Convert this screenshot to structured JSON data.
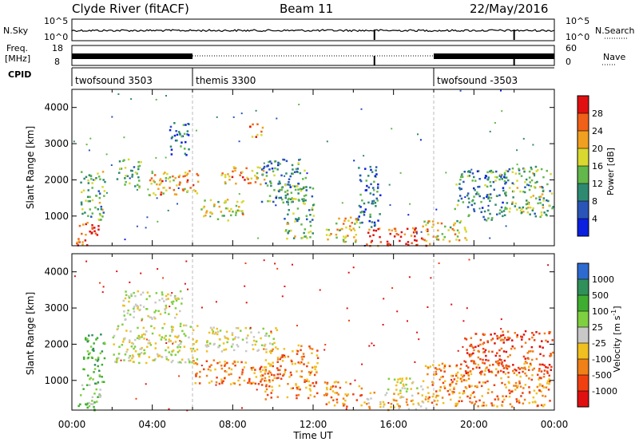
{
  "header": {
    "station": "Clyde River (fitACF)",
    "beam": "Beam 11",
    "date": "22/May/2016"
  },
  "panels": {
    "nsky_label": "N.Sky",
    "nsky_ticks": [
      "10^5",
      "10^0"
    ],
    "nsearch_label": "N.Search",
    "nsearch_ticks": [
      "10^5",
      "10^0"
    ],
    "freq_label_1": "Freq.",
    "freq_label_2": "[MHz]",
    "freq_ticks": [
      "18",
      "8"
    ],
    "nave_label": "Nave",
    "nave_ticks": [
      "60",
      "0"
    ],
    "cpid_label": "CPID",
    "cpid_segments": [
      {
        "name": "twofsound 3503",
        "start": 0
      },
      {
        "name": "themis 3300",
        "start": 6
      },
      {
        "name": "twofsound -3503",
        "start": 18
      }
    ]
  },
  "chart_data": [
    {
      "type": "heatmap",
      "name": "power",
      "xlabel": "Time UT",
      "ylabel": "Slant Range [km]",
      "x_ticks": [
        "00:00",
        "04:00",
        "08:00",
        "12:00",
        "16:00",
        "20:00",
        "00:00"
      ],
      "x_range_hours": [
        0,
        24
      ],
      "y_ticks": [
        1000,
        2000,
        3000,
        4000
      ],
      "y_range_km": [
        180,
        4500
      ],
      "colorbar": {
        "label": "Power [dB]",
        "ticks": [
          "4",
          "8",
          "12",
          "16",
          "20",
          "24",
          "28"
        ],
        "range": [
          0,
          32
        ],
        "colors": [
          "#0a1fe0",
          "#2a55b8",
          "#2d8a70",
          "#62b84a",
          "#d8d830",
          "#f0a020",
          "#f06018",
          "#e01010"
        ]
      },
      "blobs": [
        {
          "t0": 0.2,
          "t1": 1.3,
          "r0": 200,
          "r1": 900,
          "v": 28
        },
        {
          "t0": 0.4,
          "t1": 1.6,
          "r0": 900,
          "r1": 2300,
          "v": 14
        },
        {
          "t0": 2.2,
          "t1": 3.4,
          "r0": 1800,
          "r1": 2600,
          "v": 12
        },
        {
          "t0": 3.8,
          "t1": 6.4,
          "r0": 1600,
          "r1": 2300,
          "v": 22
        },
        {
          "t0": 4.8,
          "t1": 5.8,
          "r0": 2700,
          "r1": 3600,
          "v": 8
        },
        {
          "t0": 6.4,
          "t1": 8.6,
          "r0": 900,
          "r1": 1500,
          "v": 18
        },
        {
          "t0": 7.4,
          "t1": 9.6,
          "r0": 1900,
          "r1": 2400,
          "v": 22
        },
        {
          "t0": 8.8,
          "t1": 9.5,
          "r0": 3200,
          "r1": 3600,
          "v": 24
        },
        {
          "t0": 9.4,
          "t1": 11.6,
          "r0": 1400,
          "r1": 2600,
          "v": 10
        },
        {
          "t0": 10.5,
          "t1": 12.0,
          "r0": 400,
          "r1": 1900,
          "v": 14
        },
        {
          "t0": 12.6,
          "t1": 14.3,
          "r0": 300,
          "r1": 1000,
          "v": 20
        },
        {
          "t0": 14.2,
          "t1": 15.3,
          "r0": 700,
          "r1": 2400,
          "v": 8
        },
        {
          "t0": 14.6,
          "t1": 17.8,
          "r0": 200,
          "r1": 700,
          "v": 28
        },
        {
          "t0": 17.4,
          "t1": 19.6,
          "r0": 300,
          "r1": 900,
          "v": 18
        },
        {
          "t0": 19.0,
          "t1": 21.6,
          "r0": 900,
          "r1": 2300,
          "v": 10
        },
        {
          "t0": 21.5,
          "t1": 23.9,
          "r0": 1000,
          "r1": 2400,
          "v": 14
        }
      ]
    },
    {
      "type": "heatmap",
      "name": "velocity",
      "xlabel": "Time UT",
      "ylabel": "Slant Range [km]",
      "x_ticks": [
        "00:00",
        "04:00",
        "08:00",
        "12:00",
        "16:00",
        "20:00",
        "00:00"
      ],
      "x_range_hours": [
        0,
        24
      ],
      "y_ticks": [
        1000,
        2000,
        3000,
        4000
      ],
      "y_range_km": [
        180,
        4500
      ],
      "colorbar": {
        "label": "Velocity [m s^-1]",
        "ticks": [
          "1000",
          "500",
          "100",
          "25",
          "-25",
          "-100",
          "-500",
          "-1000"
        ],
        "colors": [
          "#2d6ad0",
          "#30905a",
          "#3fae30",
          "#7fd040",
          "#c8c8c8",
          "#f0c020",
          "#f08018",
          "#f04010",
          "#e01010"
        ]
      },
      "blobs": [
        {
          "t0": 0.2,
          "t1": 1.4,
          "r0": 200,
          "r1": 900,
          "v": 3
        },
        {
          "t0": 0.5,
          "t1": 1.6,
          "r0": 900,
          "r1": 2300,
          "v": 2
        },
        {
          "t0": 2.0,
          "t1": 6.2,
          "r0": 1500,
          "r1": 2600,
          "v": 4
        },
        {
          "t0": 2.5,
          "t1": 5.5,
          "r0": 2700,
          "r1": 3500,
          "v": 4
        },
        {
          "t0": 6.0,
          "t1": 9.6,
          "r0": 900,
          "r1": 1600,
          "v": 6
        },
        {
          "t0": 6.6,
          "t1": 10.2,
          "r0": 1800,
          "r1": 2500,
          "v": 4
        },
        {
          "t0": 9.5,
          "t1": 12.2,
          "r0": 500,
          "r1": 2000,
          "v": 6
        },
        {
          "t0": 12.5,
          "t1": 14.4,
          "r0": 300,
          "r1": 1000,
          "v": 6
        },
        {
          "t0": 14.5,
          "t1": 17.6,
          "r0": 200,
          "r1": 700,
          "v": 5
        },
        {
          "t0": 15.5,
          "t1": 17.5,
          "r0": 700,
          "r1": 1100,
          "v": 4
        },
        {
          "t0": 17.5,
          "t1": 23.8,
          "r0": 300,
          "r1": 1500,
          "v": 6
        },
        {
          "t0": 19.5,
          "t1": 23.9,
          "r0": 1200,
          "r1": 2400,
          "v": 7
        }
      ]
    }
  ]
}
